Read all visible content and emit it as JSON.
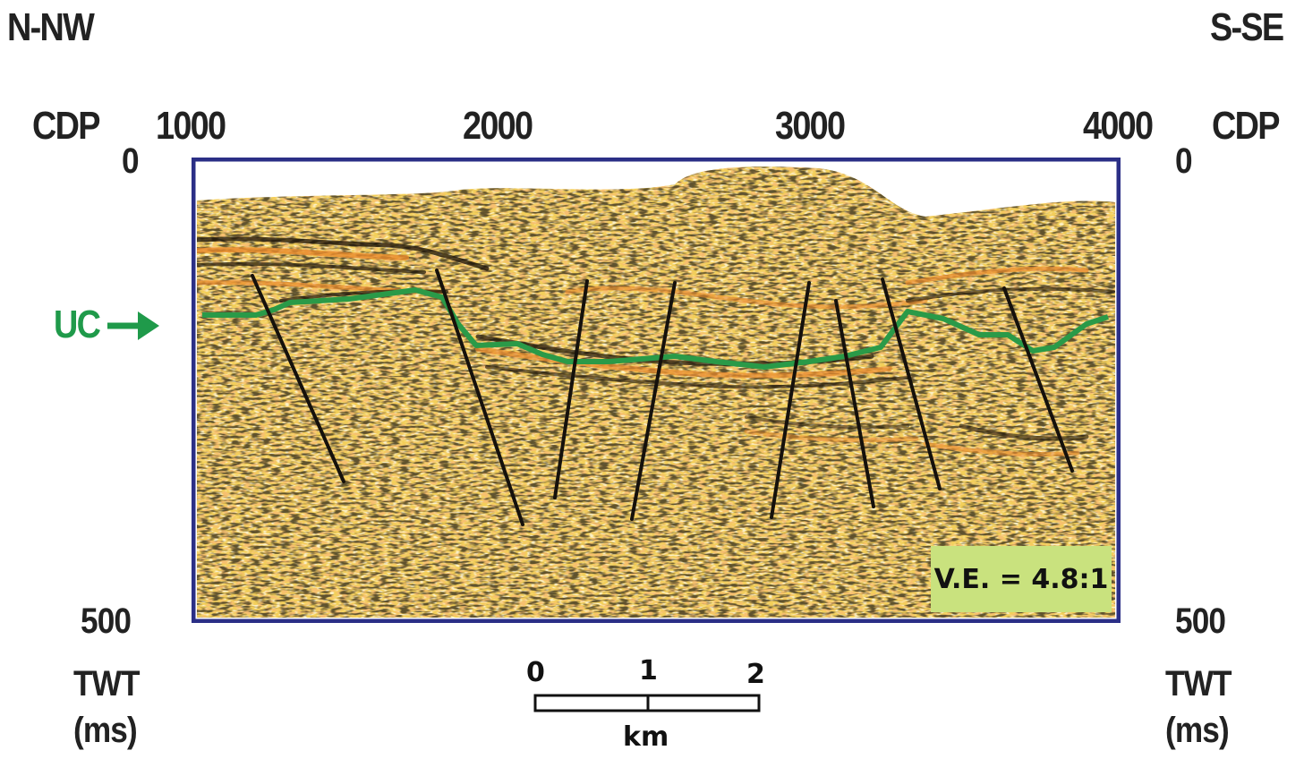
{
  "orientation": {
    "left": "N-NW",
    "right": "S-SE"
  },
  "cdp": {
    "axis_label": "CDP",
    "ticks": [
      {
        "label": "1000",
        "value": 1000
      },
      {
        "label": "2000",
        "value": 2000
      },
      {
        "label": "3000",
        "value": 3000
      },
      {
        "label": "4000",
        "value": 4000
      }
    ]
  },
  "twt": {
    "top": "0",
    "bottom": "500",
    "label": "TWT",
    "unit": "(ms)"
  },
  "horizon": {
    "label": "UC",
    "color": "#2a9a48"
  },
  "vertical_exaggeration": "V.E. = 4.8:1",
  "scale_bar": {
    "ticks": [
      "0",
      "1",
      "2"
    ],
    "unit": "km"
  },
  "colors": {
    "frame": "#2b2f86",
    "reflector_dark": "#1a1208",
    "reflector_orange": "#e8892c",
    "background": "#f3cf5a"
  }
}
